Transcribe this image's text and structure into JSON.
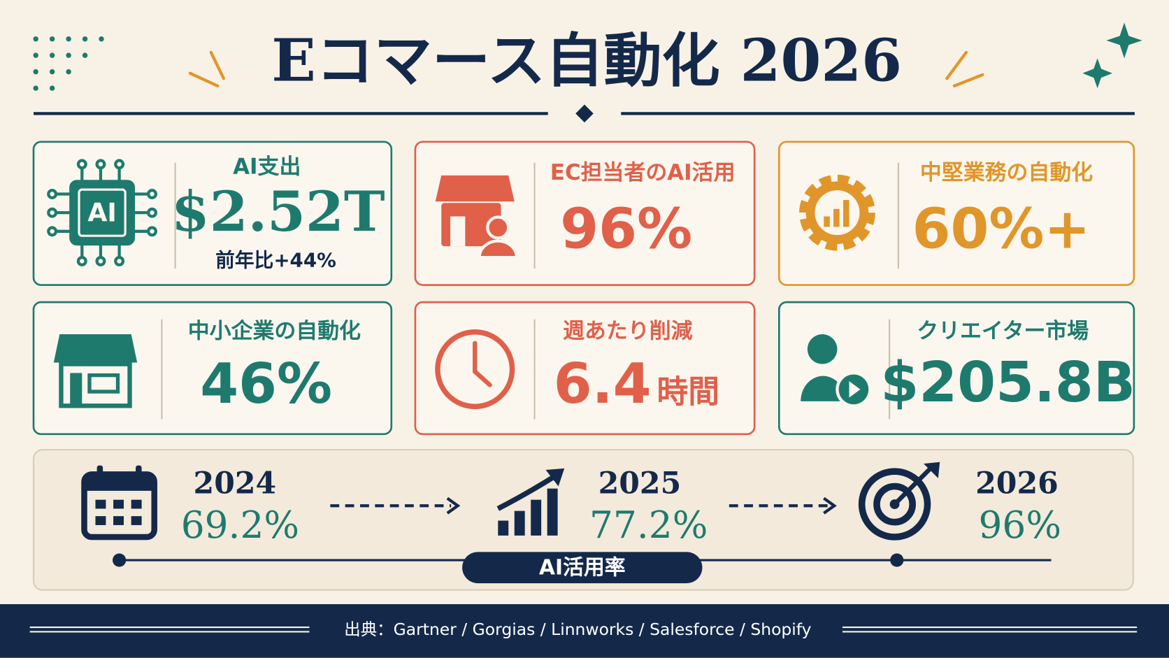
{
  "header": {
    "title": "Eコマース自動化 2026"
  },
  "cards": [
    {
      "label": "AI支出",
      "value": "$2.52T",
      "sub": "前年比+44%"
    },
    {
      "label": "EC担当者のAI活用",
      "value": "96%"
    },
    {
      "label": "中堅業務の自動化",
      "value": "60%+"
    },
    {
      "label": "中小企業の自動化",
      "value": "46%"
    },
    {
      "label": "週あたり削減",
      "value": "6.4",
      "unit": "時間"
    },
    {
      "label": "クリエイター市場",
      "value": "$205.8B"
    }
  ],
  "timeline": {
    "label": "AI活用率",
    "items": [
      {
        "year": "2024",
        "value": "69.2%"
      },
      {
        "year": "2025",
        "value": "77.2%"
      },
      {
        "year": "2026",
        "value": "96%"
      }
    ]
  },
  "footer": {
    "source": "出典：Gartner / Gorgias / Linnworks / Salesforce / Shopify"
  }
}
